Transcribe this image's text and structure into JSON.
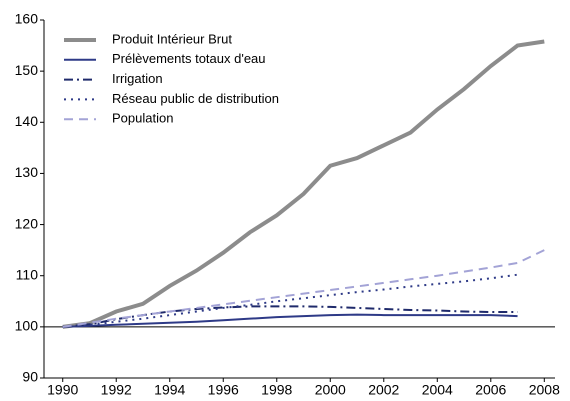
{
  "chart_data": {
    "type": "line",
    "x": [
      1990,
      1991,
      1992,
      1993,
      1994,
      1995,
      1996,
      1997,
      1998,
      1999,
      2000,
      2001,
      2002,
      2003,
      2004,
      2005,
      2006,
      2007,
      2008
    ],
    "series": [
      {
        "name": "Produit Intérieur Brut",
        "color": "#8c8c8c",
        "style": "solid",
        "width": 4,
        "values": [
          100,
          100.7,
          103,
          104.5,
          108,
          111,
          114.5,
          118.5,
          121.8,
          126,
          131.5,
          133,
          135.5,
          138,
          142.5,
          146.5,
          151,
          155,
          155.8
        ]
      },
      {
        "name": "Prélèvements totaux d'eau",
        "color": "#2e3a87",
        "style": "solid",
        "width": 2,
        "values": [
          100,
          100.2,
          100.4,
          100.6,
          100.8,
          101,
          101.3,
          101.6,
          101.9,
          102.1,
          102.3,
          102.4,
          102.3,
          102.3,
          102.3,
          102.3,
          102.3,
          102.1,
          null
        ]
      },
      {
        "name": "Irrigation",
        "color": "#1f2a6b",
        "style": "dashdot",
        "width": 2,
        "values": [
          100,
          100.5,
          101.5,
          102.3,
          103,
          103.5,
          103.8,
          104,
          104,
          104,
          103.9,
          103.7,
          103.5,
          103.3,
          103.2,
          103,
          102.9,
          102.9,
          null
        ]
      },
      {
        "name": "Réseau public de distribution",
        "color": "#2e3a87",
        "style": "dotted",
        "width": 2,
        "values": [
          100,
          100.4,
          101,
          101.6,
          102.3,
          103,
          103.7,
          104.3,
          105,
          105.6,
          106.2,
          106.8,
          107.3,
          107.9,
          108.4,
          108.9,
          109.5,
          110.2,
          null
        ]
      },
      {
        "name": "Population",
        "color": "#a3a3d6",
        "style": "dashed",
        "width": 2,
        "values": [
          100,
          100.8,
          101.6,
          102.3,
          103,
          103.7,
          104.4,
          105.1,
          105.8,
          106.5,
          107.2,
          107.9,
          108.6,
          109.3,
          110,
          110.8,
          111.6,
          112.5,
          115
        ]
      }
    ],
    "xlim": [
      1989.3,
      2008.4
    ],
    "xticks": [
      1990,
      1992,
      1994,
      1996,
      1998,
      2000,
      2002,
      2004,
      2006,
      2008
    ],
    "ylim": [
      90,
      160
    ],
    "yticks": [
      90,
      100,
      110,
      120,
      130,
      140,
      150,
      160
    ],
    "reference_line": 100,
    "legend": "upper-left",
    "grid": false
  }
}
